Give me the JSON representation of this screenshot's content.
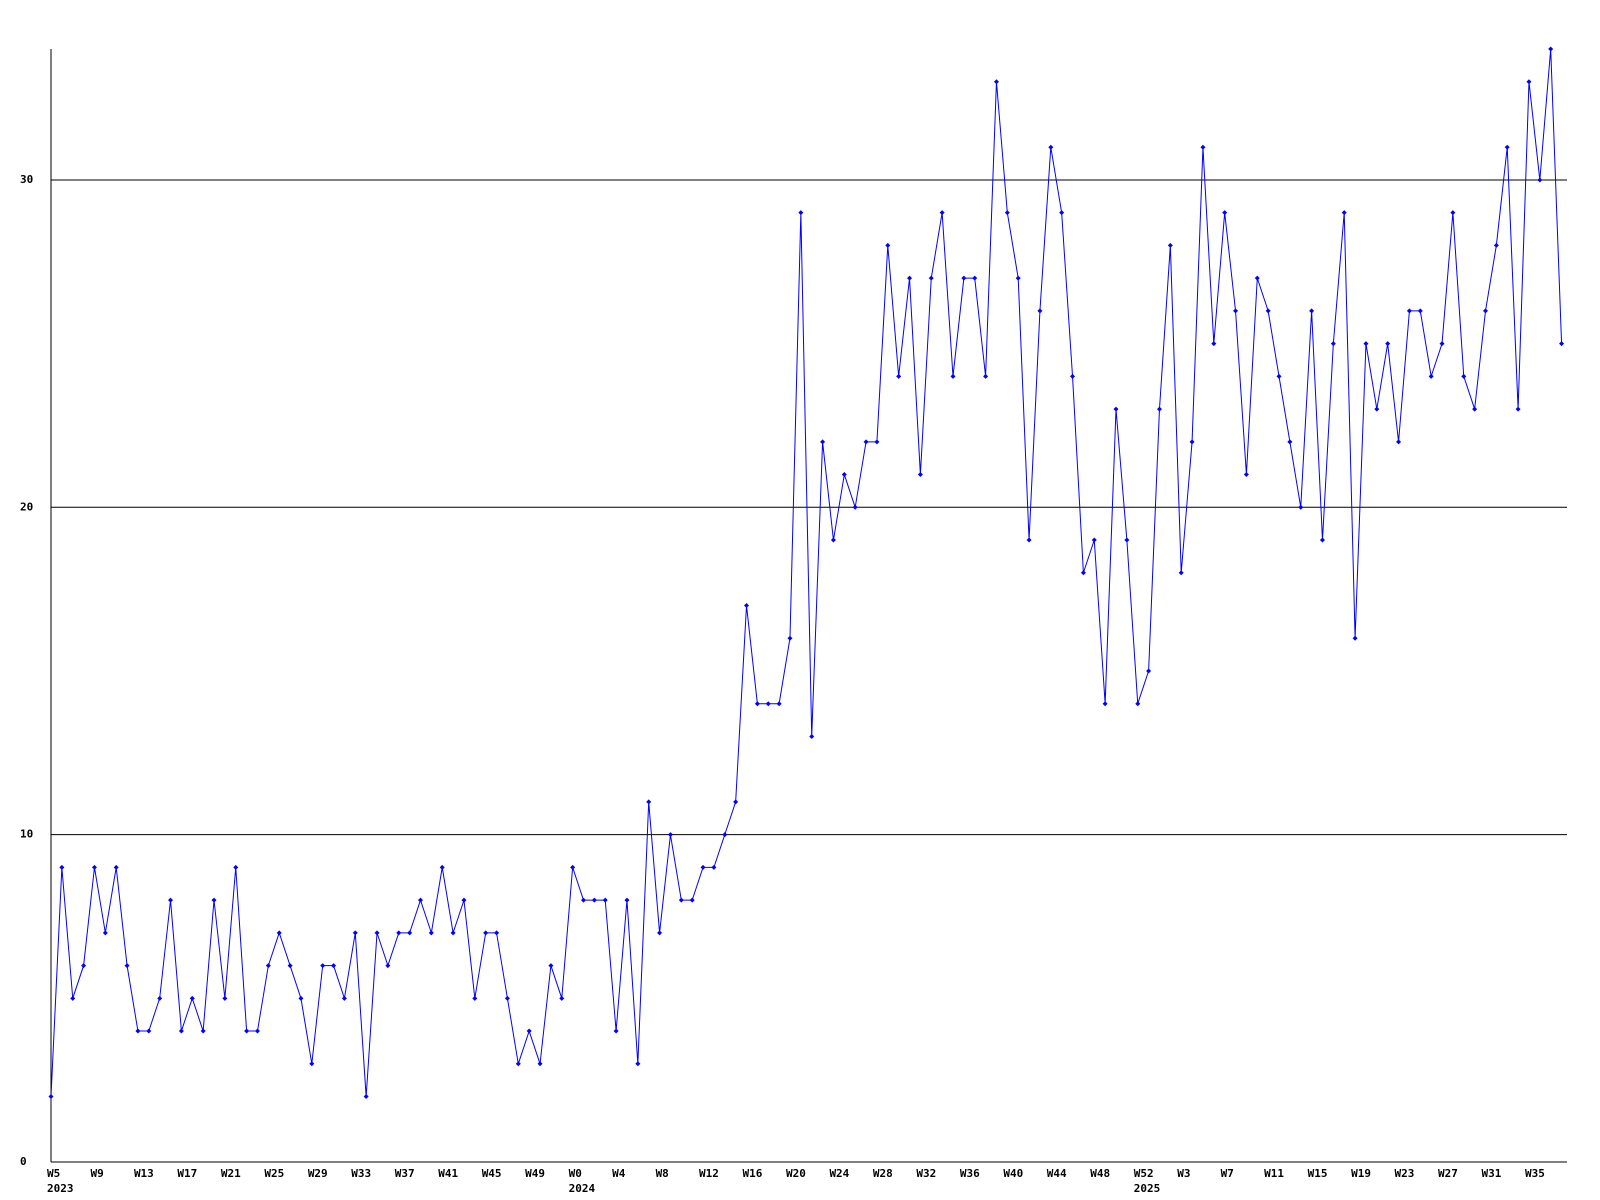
{
  "chart_data": {
    "type": "line",
    "categories": [
      "W5",
      null,
      null,
      null,
      "W9",
      null,
      null,
      null,
      "W13",
      null,
      null,
      null,
      "W17",
      null,
      null,
      null,
      "W21",
      null,
      null,
      null,
      "W25",
      null,
      null,
      null,
      "W29",
      null,
      null,
      null,
      "W33",
      null,
      null,
      null,
      "W37",
      null,
      null,
      null,
      "W41",
      null,
      null,
      null,
      "W45",
      null,
      null,
      null,
      "W49",
      null,
      null,
      null,
      "W0",
      null,
      null,
      null,
      "W4",
      null,
      null,
      null,
      "W8",
      null,
      null,
      null,
      "W12",
      null,
      null,
      null,
      "W16",
      null,
      null,
      null,
      "W20",
      null,
      null,
      null,
      "W24",
      null,
      null,
      null,
      "W28",
      null,
      null,
      null,
      "W32",
      null,
      null,
      null,
      "W36",
      null,
      null,
      null,
      "W40",
      null,
      null,
      null,
      "W44",
      null,
      null,
      null,
      "W48",
      null,
      null,
      null,
      "W52",
      null,
      null,
      null,
      "W3",
      null,
      null,
      null,
      "W7",
      null,
      null,
      null,
      "W11",
      null,
      null,
      null,
      "W15",
      null,
      null,
      null,
      "W19",
      null,
      null,
      null,
      "W23",
      null,
      null,
      null,
      "W27",
      null,
      null,
      null,
      "W31",
      null,
      null,
      null,
      "W35",
      null,
      null,
      null
    ],
    "category_years": [
      "2023",
      null,
      null,
      null,
      null,
      null,
      null,
      null,
      null,
      null,
      null,
      null,
      null,
      null,
      null,
      null,
      null,
      null,
      null,
      null,
      null,
      null,
      null,
      null,
      null,
      null,
      null,
      null,
      null,
      null,
      null,
      null,
      null,
      null,
      null,
      null,
      null,
      null,
      null,
      null,
      null,
      null,
      null,
      null,
      null,
      null,
      null,
      null,
      "2024",
      null,
      null,
      null,
      null,
      null,
      null,
      null,
      null,
      null,
      null,
      null,
      null,
      null,
      null,
      null,
      null,
      null,
      null,
      null,
      null,
      null,
      null,
      null,
      null,
      null,
      null,
      null,
      null,
      null,
      null,
      null,
      null,
      null,
      null,
      null,
      null,
      null,
      null,
      null,
      null,
      null,
      null,
      null,
      null,
      null,
      null,
      null,
      null,
      null,
      null,
      null,
      "2025",
      null,
      null,
      null,
      null,
      null,
      null,
      null,
      null,
      null,
      null,
      null,
      null,
      null,
      null,
      null,
      null,
      null,
      null,
      null,
      null,
      null,
      null,
      null,
      null,
      null,
      null,
      null,
      null,
      null,
      null,
      null,
      null,
      null,
      null,
      null,
      null,
      null,
      null,
      null
    ],
    "values": [
      2,
      9,
      5,
      6,
      9,
      7,
      9,
      6,
      4,
      4,
      5,
      8,
      4,
      5,
      4,
      8,
      5,
      9,
      4,
      4,
      6,
      7,
      6,
      5,
      3,
      6,
      6,
      5,
      7,
      2,
      7,
      6,
      7,
      7,
      8,
      7,
      9,
      7,
      8,
      5,
      7,
      7,
      5,
      3,
      4,
      3,
      6,
      5,
      9,
      8,
      8,
      8,
      4,
      8,
      3,
      11,
      7,
      10,
      8,
      8,
      9,
      9,
      10,
      11,
      17,
      14,
      14,
      14,
      16,
      29,
      13,
      22,
      19,
      21,
      20,
      22,
      22,
      28,
      24,
      27,
      21,
      27,
      29,
      24,
      27,
      27,
      24,
      33,
      29,
      27,
      19,
      26,
      31,
      29,
      24,
      18,
      19,
      14,
      23,
      19,
      14,
      15,
      23,
      28,
      18,
      22,
      31,
      25,
      29,
      26,
      21,
      27,
      26,
      24,
      22,
      20,
      26,
      19,
      25,
      29,
      16,
      25,
      23,
      25,
      22,
      26,
      26,
      24,
      25,
      29,
      24,
      23,
      26,
      28,
      31,
      23,
      33,
      30,
      34,
      25
    ],
    "color": "#0000ff",
    "ylim": [
      0,
      34
    ],
    "yticks": [
      0,
      10,
      20,
      30
    ],
    "grid": true
  }
}
